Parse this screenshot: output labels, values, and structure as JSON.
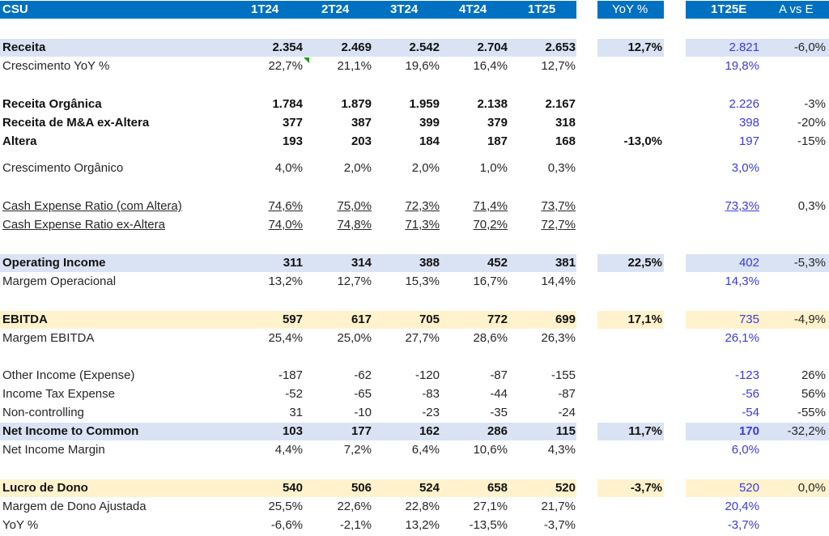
{
  "header": {
    "title": "CSU",
    "periods": [
      "1T24",
      "2T24",
      "3T24",
      "4T24",
      "1T25"
    ],
    "yoy": "YoY %",
    "estimate": "1T25E",
    "actual_vs_estimate": "A vs E"
  },
  "colors": {
    "header_bg": "#0070c0",
    "highlight_blue": "#dae3f3",
    "highlight_yellow": "#fff2cc",
    "estimate_text": "#3a3ae0",
    "comment_flag": "#1a9a1a"
  },
  "rows": {
    "receita": {
      "label": "Receita",
      "values": [
        "2.354",
        "2.469",
        "2.542",
        "2.704",
        "2.653"
      ],
      "yoy": "12,7%",
      "est": "2.821",
      "ave": "-6,0%"
    },
    "cresc_yoy": {
      "label": "Crescimento YoY %",
      "values": [
        "22,7%",
        "21,1%",
        "19,6%",
        "16,4%",
        "12,7%"
      ],
      "est": "19,8%"
    },
    "rec_org": {
      "label": "Receita Orgânica",
      "values": [
        "1.784",
        "1.879",
        "1.959",
        "2.138",
        "2.167"
      ],
      "est": "2.226",
      "ave": "-3%"
    },
    "rec_ma": {
      "label": "Receita de M&A ex-Altera",
      "values": [
        "377",
        "387",
        "399",
        "379",
        "318"
      ],
      "est": "398",
      "ave": "-20%"
    },
    "altera": {
      "label": "Altera",
      "values": [
        "193",
        "203",
        "184",
        "187",
        "168"
      ],
      "yoy": "-13,0%",
      "est": "197",
      "ave": "-15%"
    },
    "cresc_org": {
      "label": "Crescimento Orgânico",
      "values": [
        "4,0%",
        "2,0%",
        "2,0%",
        "1,0%",
        "0,3%"
      ],
      "est": "3,0%"
    },
    "cer_com": {
      "label": "Cash Expense Ratio (com Altera)",
      "values": [
        "74,6%",
        "75,0%",
        "72,3%",
        "71,4%",
        "73,7%"
      ],
      "est": "73,3%",
      "ave": "0,3%"
    },
    "cer_ex": {
      "label": "Cash Expense Ratio ex-Altera",
      "values": [
        "74,0%",
        "74,8%",
        "71,3%",
        "70,2%",
        "72,7%"
      ]
    },
    "op_inc": {
      "label": "Operating Income",
      "values": [
        "311",
        "314",
        "388",
        "452",
        "381"
      ],
      "yoy": "22,5%",
      "est": "402",
      "ave": "-5,3%"
    },
    "marg_op": {
      "label": "Margem Operacional",
      "values": [
        "13,2%",
        "12,7%",
        "15,3%",
        "16,7%",
        "14,4%"
      ],
      "est": "14,3%"
    },
    "ebitda": {
      "label": "EBITDA",
      "values": [
        "597",
        "617",
        "705",
        "772",
        "699"
      ],
      "yoy": "17,1%",
      "est": "735",
      "ave": "-4,9%"
    },
    "marg_ebitda": {
      "label": "Margem EBITDA",
      "values": [
        "25,4%",
        "25,0%",
        "27,7%",
        "28,6%",
        "26,3%"
      ],
      "est": "26,1%"
    },
    "other_inc": {
      "label": "Other Income (Expense)",
      "values": [
        "-187",
        "-62",
        "-120",
        "-87",
        "-155"
      ],
      "est": "-123",
      "ave": "26%"
    },
    "tax": {
      "label": "Income Tax Expense",
      "values": [
        "-52",
        "-65",
        "-83",
        "-44",
        "-87"
      ],
      "est": "-56",
      "ave": "56%"
    },
    "noncontrol": {
      "label": "Non-controlling",
      "values": [
        "31",
        "-10",
        "-23",
        "-35",
        "-24"
      ],
      "est": "-54",
      "ave": "-55%"
    },
    "net_inc": {
      "label": "Net Income to Common",
      "values": [
        "103",
        "177",
        "162",
        "286",
        "115"
      ],
      "yoy": "11,7%",
      "est": "170",
      "ave": "-32,2%"
    },
    "net_marg": {
      "label": "Net Income Margin",
      "values": [
        "4,4%",
        "7,2%",
        "6,4%",
        "10,6%",
        "4,3%"
      ],
      "est": "6,0%"
    },
    "lucro_dono": {
      "label": "Lucro de Dono",
      "values": [
        "540",
        "506",
        "524",
        "658",
        "520"
      ],
      "yoy": "-3,7%",
      "est": "520",
      "ave": "0,0%"
    },
    "marg_dono": {
      "label": "Margem de Dono Ajustada",
      "values": [
        "25,5%",
        "22,6%",
        "22,8%",
        "27,1%",
        "21,7%"
      ],
      "est": "20,4%"
    },
    "yoy_dono": {
      "label": "YoY %",
      "values": [
        "-6,6%",
        "-2,1%",
        "13,2%",
        "-13,5%",
        "-3,7%"
      ],
      "est": "-3,7%"
    }
  }
}
